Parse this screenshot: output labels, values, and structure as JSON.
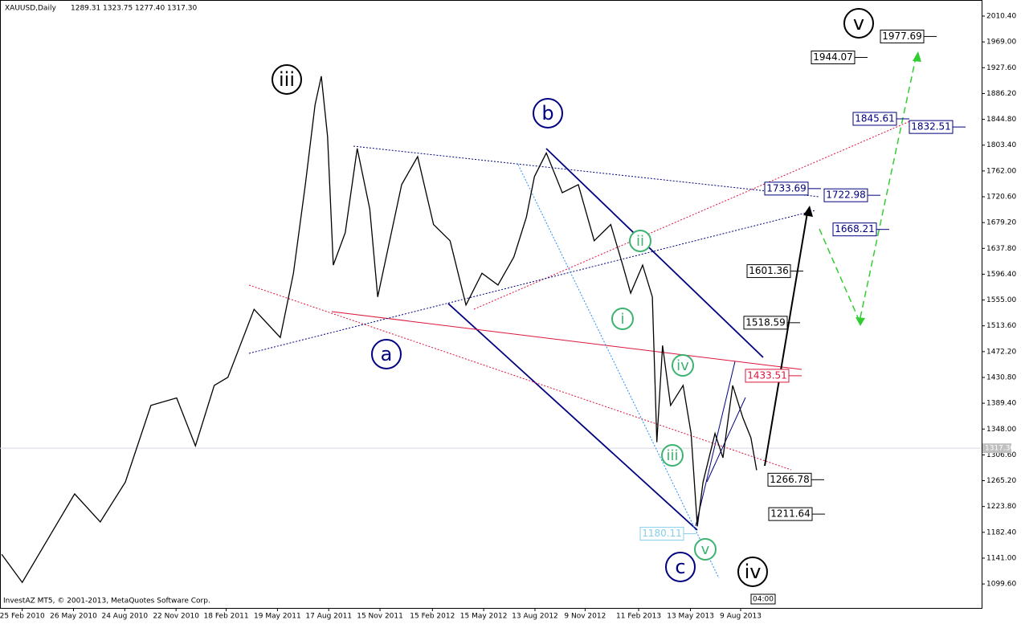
{
  "chart_data": {
    "type": "line",
    "title": "XAUUSD,Daily",
    "quote": [
      1289.31,
      1323.75,
      {
        "value": 1277.4,
        "label": "1277.40"
      },
      {
        "value": 1317.3,
        "label": "1317.30"
      }
    ],
    "copyright": "InvestAZ MT5, © 2001-2013, MetaQuotes Software Corp.",
    "last_price": {
      "value": 1317.3,
      "label": "1317.30"
    },
    "time_label": "04:00",
    "x": [
      "2010-01-20",
      "2010-02-25",
      "2010-04-12",
      "2010-05-28",
      "2010-07-12",
      "2010-08-25",
      "2010-10-09",
      "2010-11-23",
      "2010-12-26",
      "2011-01-28",
      "2011-02-21",
      "2011-04-08",
      "2011-05-24",
      "2011-06-16",
      "2011-07-07",
      "2011-07-24",
      "2011-08-04",
      "2011-08-15",
      "2011-08-25",
      "2011-09-15",
      "2011-10-06",
      "2011-10-28",
      "2011-11-11",
      "2011-12-02",
      "2011-12-23",
      "2012-01-20",
      "2012-02-17",
      "2012-03-17",
      "2012-04-14",
      "2012-05-12",
      "2012-06-09",
      "2012-07-07",
      "2012-07-29",
      "2012-08-12",
      "2012-09-02",
      "2012-09-30",
      "2012-10-28",
      "2012-11-25",
      "2012-12-24",
      "2013-01-14",
      "2013-01-28",
      "2013-02-18",
      "2013-03-07",
      "2013-03-15",
      "2013-03-25",
      "2013-04-08",
      "2013-04-30",
      "2013-05-14",
      "2013-05-25",
      "2013-06-04",
      "2013-06-25",
      "2013-07-09",
      "2013-07-26",
      "2013-08-13",
      "2013-08-27",
      "2013-09-06"
    ],
    "series": [
      {
        "color": "#000000",
        "values": [
          1147,
          1102,
          1173,
          1244,
          1199,
          1263,
          1386,
          1398,
          1321,
          1418,
          1431,
          1540,
          1495,
          1598,
          1740,
          1868,
          1914,
          1817,
          1611,
          1663,
          1798,
          1701,
          1560,
          1650,
          1740,
          1785,
          1676,
          1650,
          1547,
          1598,
          1579,
          1624,
          1688,
          1753,
          1791,
          1727,
          1740,
          1650,
          1676,
          1611,
          1566,
          1611,
          1560,
          1327,
          1482,
          1386,
          1418,
          1341,
          1192,
          1263,
          1341,
          1302,
          1418,
          1366,
          1334,
          1282
        ]
      }
    ],
    "xlim": [
      "2010-01-17",
      "2014-10-06"
    ],
    "xticks": [
      {
        "value": "2010-02-25",
        "label": "25 Feb 2010"
      },
      {
        "value": "2010-05-26",
        "label": "26 May 2010"
      },
      {
        "value": "2010-08-24",
        "label": "24 Aug 2010"
      },
      {
        "value": "2010-11-22",
        "label": "22 Nov 2010"
      },
      {
        "value": "2011-02-18",
        "label": "18 Feb 2011"
      },
      {
        "value": "2011-05-19",
        "label": "19 May 2011"
      },
      {
        "value": "2011-08-17",
        "label": "17 Aug 2011"
      },
      {
        "value": "2011-11-15",
        "label": "15 Nov 2011"
      },
      {
        "value": "2012-02-15",
        "label": "15 Feb 2012"
      },
      {
        "value": "2012-05-15",
        "label": "15 May 2012"
      },
      {
        "value": "2012-08-13",
        "label": "13 Aug 2012"
      },
      {
        "value": "2012-11-09",
        "label": "9 Nov 2012"
      },
      {
        "value": "2013-02-11",
        "label": "11 Feb 2013"
      },
      {
        "value": "2013-05-13",
        "label": "13 May 2013"
      },
      {
        "value": "2013-08-09",
        "label": "9 Aug 2013"
      }
    ],
    "ylim": [
      1061.1,
      2036.2
    ],
    "yticks": [
      {
        "value": 2010.4,
        "label": "2010.40"
      },
      {
        "value": 1969,
        "label": "1969.00"
      },
      {
        "value": 1927.6,
        "label": "1927.60"
      },
      {
        "value": 1886.2,
        "label": "1886.20"
      },
      {
        "value": 1844.8,
        "label": "1844.80"
      },
      {
        "value": 1803.4,
        "label": "1803.40"
      },
      {
        "value": 1762,
        "label": "1762.00"
      },
      {
        "value": 1720.6,
        "label": "1720.60"
      },
      {
        "value": 1679.2,
        "label": "1679.20"
      },
      {
        "value": 1637.8,
        "label": "1637.80"
      },
      {
        "value": 1596.4,
        "label": "1596.40"
      },
      {
        "value": 1555,
        "label": "1555.00"
      },
      {
        "value": 1513.6,
        "label": "1513.60"
      },
      {
        "value": 1472.2,
        "label": "1472.20"
      },
      {
        "value": 1430.8,
        "label": "1430.80"
      },
      {
        "value": 1389.4,
        "label": "1389.40"
      },
      {
        "value": 1348,
        "label": "1348.00"
      },
      {
        "value": 1306.6,
        "label": "1306.60"
      },
      {
        "value": 1265.2,
        "label": "1265.20"
      },
      {
        "value": 1223.8,
        "label": "1223.80"
      },
      {
        "value": 1182.4,
        "label": "1182.40"
      },
      {
        "value": 1141,
        "label": "1141.00"
      },
      {
        "value": 1099.6,
        "label": "1099.60"
      }
    ],
    "levels": [
      {
        "value": 1977.69,
        "color": "#000000"
      },
      {
        "value": 1944.07,
        "color": "#000000"
      },
      {
        "value": 1845.61,
        "color": "#000080"
      },
      {
        "value": 1832.51,
        "color": "#000080"
      },
      {
        "value": 1733.69,
        "color": "#000080"
      },
      {
        "value": 1722.98,
        "color": "#000080"
      },
      {
        "value": 1668.21,
        "color": "#000080"
      },
      {
        "value": 1601.36,
        "color": "#000000"
      },
      {
        "value": 1518.59,
        "color": "#000000"
      },
      {
        "value": 1433.51,
        "color": "#dc143c"
      },
      {
        "value": 1266.78,
        "color": "#000000"
      },
      {
        "value": 1211.64,
        "color": "#000000"
      },
      {
        "value": 1180.11,
        "color": "#87ceeb"
      }
    ],
    "waves": [
      {
        "label": "iii",
        "color": "#000000"
      },
      {
        "label": "v",
        "color": "#000000"
      },
      {
        "label": "iv",
        "color": "#000000"
      },
      {
        "label": "b",
        "color": "#000080"
      },
      {
        "label": "a",
        "color": "#000080"
      },
      {
        "label": "c",
        "color": "#000080"
      },
      {
        "label": "i",
        "color": "#3cb371"
      },
      {
        "label": "ii",
        "color": "#3cb371"
      },
      {
        "label": "iii",
        "color": "#3cb371"
      },
      {
        "label": "iv",
        "color": "#3cb371"
      },
      {
        "label": "v",
        "color": "#3cb371"
      }
    ]
  }
}
